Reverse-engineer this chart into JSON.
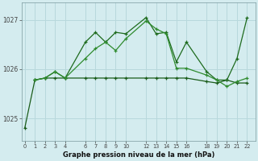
{
  "background_color": "#d4ecef",
  "grid_color": "#b8d8dc",
  "line_dark": "#1a5c1a",
  "line_mid": "#1e6b1e",
  "line_light": "#2e8b2e",
  "xlabel_label": "Graphe pression niveau de la mer (hPa)",
  "xticks": [
    0,
    1,
    2,
    3,
    4,
    6,
    7,
    8,
    9,
    10,
    12,
    13,
    14,
    15,
    16,
    18,
    19,
    20,
    21,
    22
  ],
  "ylim": [
    1024.55,
    1027.35
  ],
  "xlim": [
    -0.3,
    22.8
  ],
  "series1_x": [
    0,
    1,
    2,
    3,
    4,
    6,
    7,
    8,
    9,
    10,
    12,
    13,
    14,
    15,
    16,
    18,
    19,
    20,
    21,
    22
  ],
  "series1_y": [
    1024.8,
    1025.78,
    1025.82,
    1025.82,
    1025.82,
    1025.82,
    1025.82,
    1025.82,
    1025.82,
    1025.82,
    1025.82,
    1025.82,
    1025.82,
    1025.82,
    1025.82,
    1025.75,
    1025.72,
    1025.78,
    1025.72,
    1025.72
  ],
  "series2_x": [
    1,
    2,
    3,
    4,
    6,
    7,
    8,
    9,
    10,
    12,
    13,
    14,
    15,
    16,
    18,
    19,
    20,
    21,
    22
  ],
  "series2_y": [
    1025.78,
    1025.82,
    1025.95,
    1025.82,
    1026.55,
    1026.75,
    1026.55,
    1026.75,
    1026.72,
    1027.05,
    1026.72,
    1026.75,
    1026.15,
    1026.55,
    1025.95,
    1025.78,
    1025.78,
    1026.22,
    1027.05
  ],
  "series3_x": [
    1,
    2,
    3,
    4,
    6,
    7,
    8,
    9,
    10,
    12,
    13,
    14,
    15,
    16,
    18,
    19,
    20,
    21,
    22
  ],
  "series3_y": [
    1025.78,
    1025.82,
    1025.95,
    1025.82,
    1026.22,
    1026.42,
    1026.55,
    1026.38,
    1026.62,
    1026.98,
    1026.82,
    1026.72,
    1026.02,
    1026.02,
    1025.88,
    1025.78,
    1025.65,
    1025.75,
    1025.82
  ]
}
